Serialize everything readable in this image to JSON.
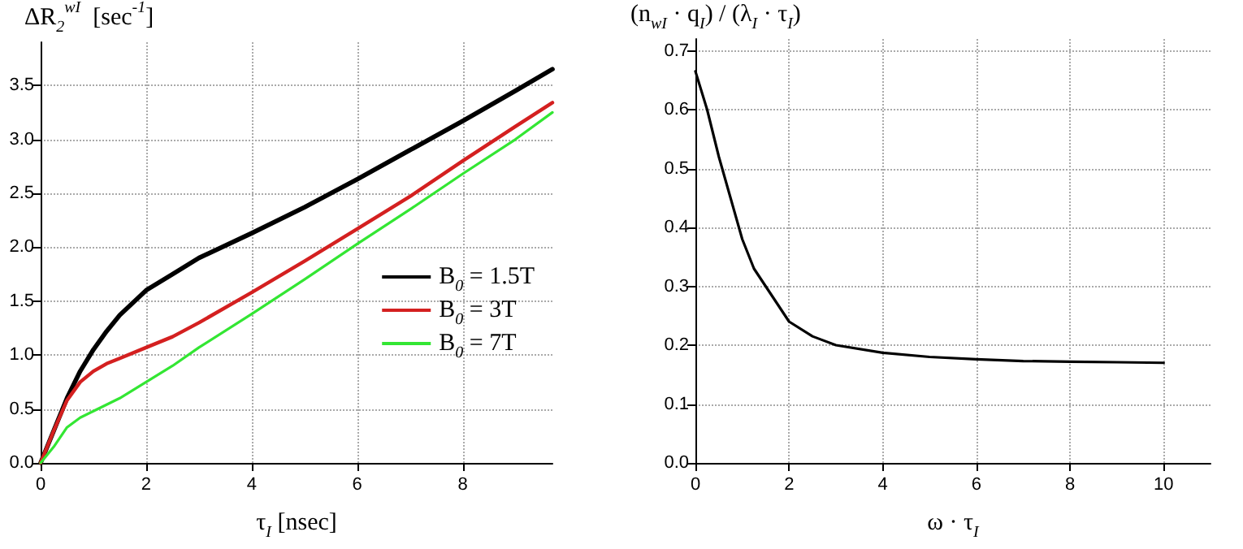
{
  "chart_data": [
    {
      "type": "line",
      "xlabel": "τ$_{I}$ [nsec]",
      "ylabel": "ΔR$_{2}$$^{wI}$  [sec$^{-1}$]",
      "xlim": [
        0,
        9.7
      ],
      "ylim": [
        0,
        3.9
      ],
      "xticks": [
        0,
        2,
        4,
        6,
        8
      ],
      "yticks": [
        {
          "value": 0,
          "label": "0.0"
        },
        {
          "value": 0.5,
          "label": "0.5"
        },
        {
          "value": 1,
          "label": "1.0"
        },
        {
          "value": 1.5,
          "label": "1.5"
        },
        {
          "value": 2,
          "label": "2.0"
        },
        {
          "value": 2.5,
          "label": "2.5"
        },
        {
          "value": 3,
          "label": "3.0"
        },
        {
          "value": 3.5,
          "label": "3.5"
        }
      ],
      "grid": true,
      "legend": "right",
      "marker": "none",
      "line_style": "solid",
      "x": [
        0,
        0.25,
        0.5,
        0.75,
        1,
        1.25,
        1.5,
        2,
        2.5,
        3,
        4,
        5,
        6,
        7,
        8,
        9,
        9.7
      ],
      "series": [
        {
          "name": "B$_{0}$ = 1.5T",
          "color": "#000000",
          "values": [
            0,
            0.3,
            0.6,
            0.85,
            1.05,
            1.22,
            1.37,
            1.6,
            1.75,
            1.9,
            2.13,
            2.37,
            2.63,
            2.9,
            3.17,
            3.45,
            3.65
          ]
        },
        {
          "name": "B$_{0}$ = 3T",
          "color": "#d42020",
          "values": [
            0,
            0.3,
            0.58,
            0.75,
            0.85,
            0.92,
            0.97,
            1.07,
            1.17,
            1.3,
            1.58,
            1.87,
            2.17,
            2.47,
            2.8,
            3.12,
            3.34
          ]
        },
        {
          "name": "B$_{0}$ = 7T",
          "color": "#33e633",
          "values": [
            0,
            0.15,
            0.33,
            0.42,
            0.48,
            0.54,
            0.6,
            0.75,
            0.9,
            1.07,
            1.38,
            1.7,
            2.03,
            2.35,
            2.68,
            3.0,
            3.25
          ]
        }
      ]
    },
    {
      "type": "line",
      "xlabel": "ω · τ$_{I}$",
      "ylabel": "(n$_{wI}$ · q$_{I}$) / (λ$_{I}$ · τ$_{I}$)",
      "xlim": [
        0,
        11
      ],
      "ylim": [
        0,
        0.72
      ],
      "xticks": [
        0,
        2,
        4,
        6,
        8,
        10
      ],
      "yticks": [
        {
          "value": 0,
          "label": "0.0"
        },
        {
          "value": 0.1,
          "label": "0.1"
        },
        {
          "value": 0.2,
          "label": "0.2"
        },
        {
          "value": 0.3,
          "label": "0.3"
        },
        {
          "value": 0.4,
          "label": "0.4"
        },
        {
          "value": 0.5,
          "label": "0.5"
        },
        {
          "value": 0.6,
          "label": "0.6"
        },
        {
          "value": 0.7,
          "label": "0.7"
        }
      ],
      "grid": true,
      "marker": "none",
      "line_style": "solid",
      "x": [
        0,
        0.25,
        0.5,
        0.75,
        1,
        1.25,
        1.5,
        2,
        2.5,
        3,
        4,
        5,
        6,
        7,
        8,
        9,
        10
      ],
      "series": [
        {
          "color": "#000000",
          "values": [
            0.665,
            0.6,
            0.52,
            0.45,
            0.38,
            0.33,
            0.3,
            0.24,
            0.215,
            0.2,
            0.187,
            0.18,
            0.176,
            0.173,
            0.172,
            0.171,
            0.17
          ]
        }
      ]
    }
  ]
}
